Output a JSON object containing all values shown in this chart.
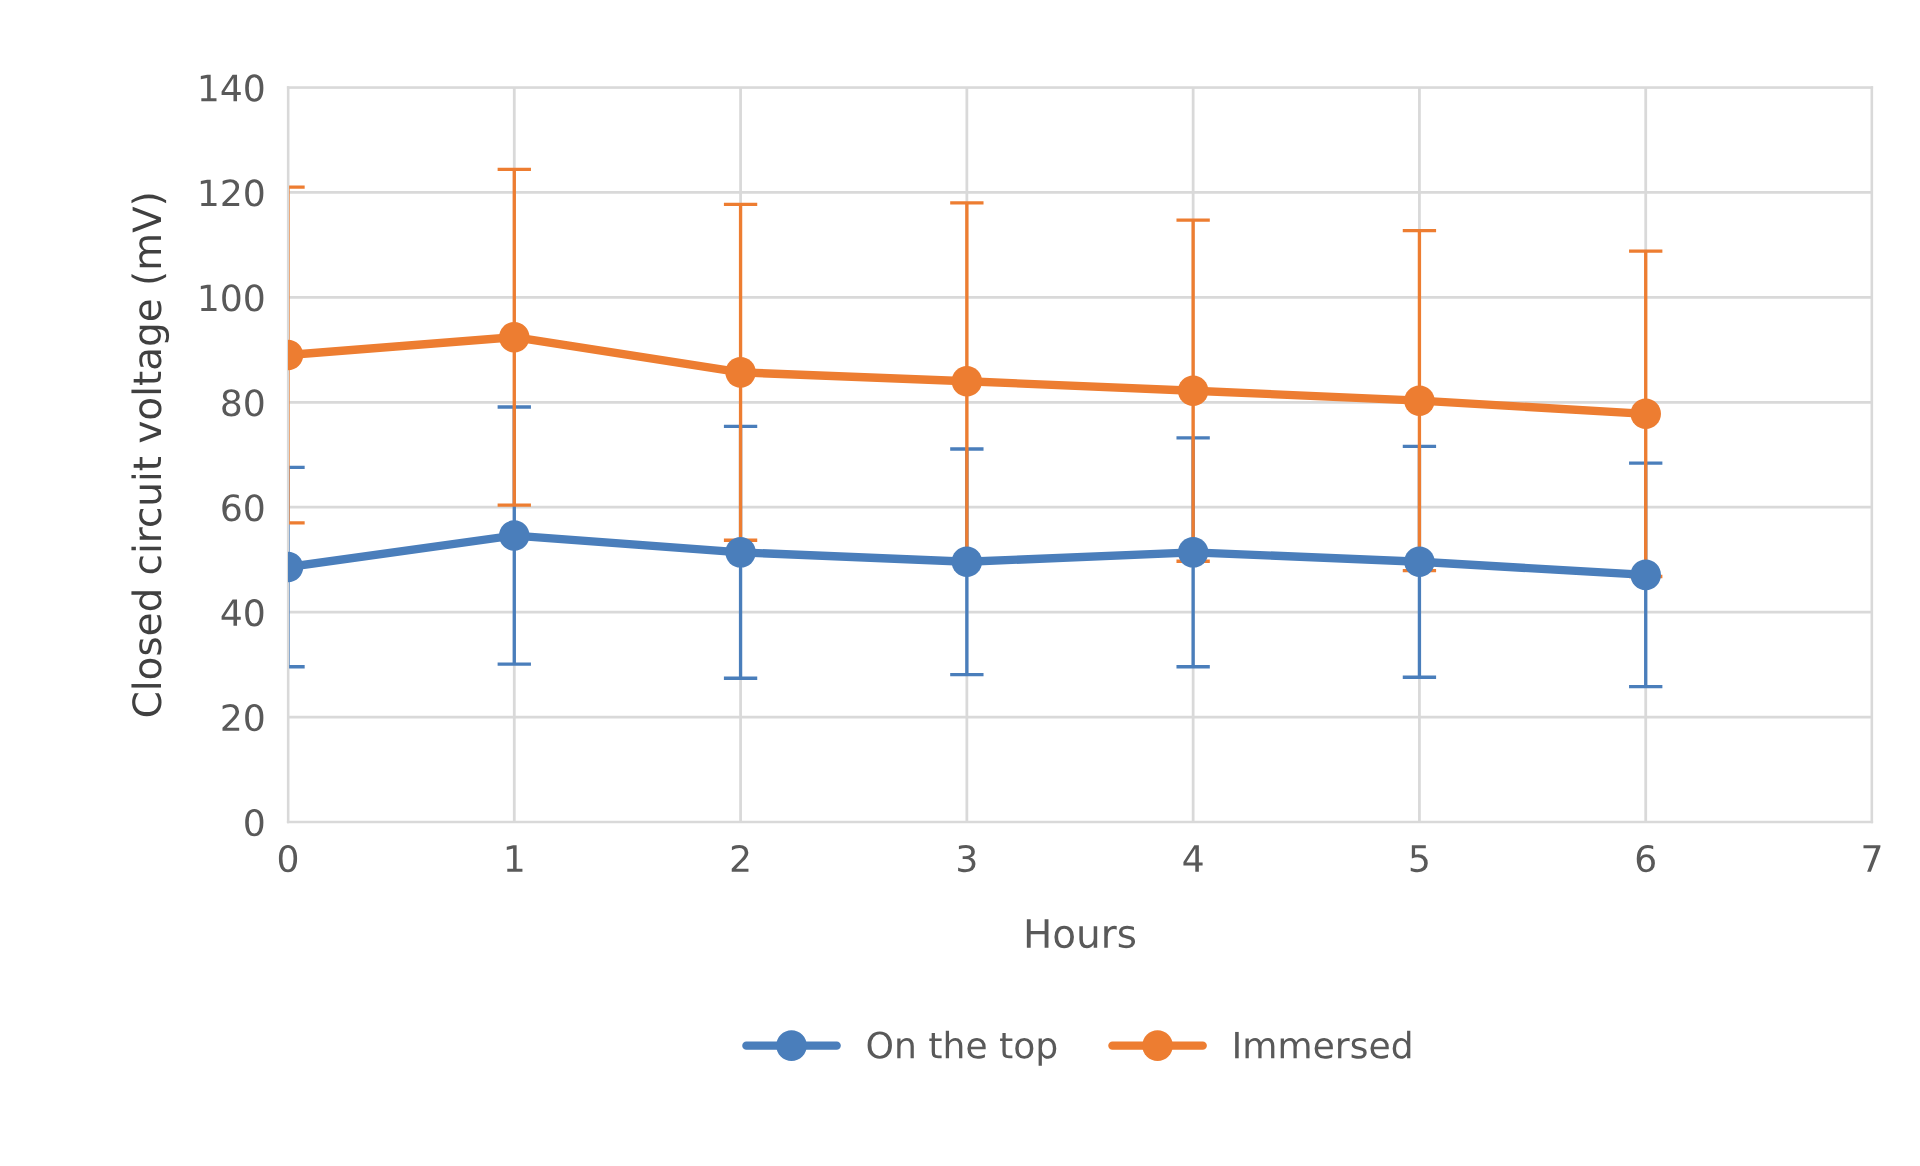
{
  "chart_data": {
    "type": "line",
    "xlabel": "Hours",
    "ylabel": "Closed circuit voltage (mV)",
    "x": [
      0,
      1,
      2,
      3,
      4,
      5,
      6
    ],
    "series": [
      {
        "name": "On the top",
        "color": "#4a7ebb",
        "values": [
          48.6,
          54.6,
          51.4,
          49.6,
          51.4,
          49.6,
          47.1
        ],
        "errors": [
          19,
          24.5,
          24,
          21.5,
          21.8,
          22,
          21.3
        ]
      },
      {
        "name": "Immersed",
        "color": "#ed7d31",
        "values": [
          89,
          92.4,
          85.7,
          84,
          82.2,
          80.3,
          77.8
        ],
        "errors": [
          32,
          32,
          32,
          34,
          32.5,
          32.4,
          31
        ]
      }
    ],
    "xlim": [
      0,
      7
    ],
    "xticks": [
      0,
      1,
      2,
      3,
      4,
      5,
      6,
      7
    ],
    "ylim": [
      0,
      140
    ],
    "yticks": [
      0,
      20,
      40,
      60,
      80,
      100,
      120,
      140
    ],
    "grid": true,
    "legend": "bottom",
    "marker": "circle",
    "line_style": "solid"
  }
}
